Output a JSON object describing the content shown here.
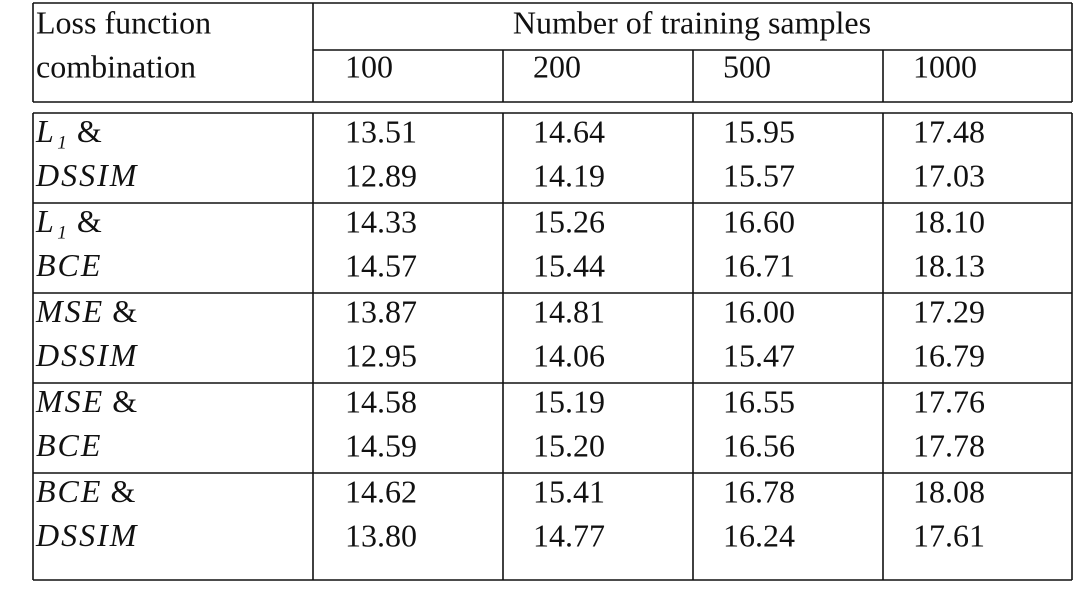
{
  "table": {
    "header": {
      "first": [
        "Loss function",
        "combination"
      ],
      "span": "Number of training samples",
      "columns": [
        "100",
        "200",
        "500",
        "1000"
      ]
    },
    "groups": [
      {
        "label": [
          {
            "math": "L₁",
            "text": "&"
          },
          {
            "math": "DSSIM"
          }
        ],
        "rows": [
          [
            "13.51",
            "14.64",
            "15.95",
            "17.48"
          ],
          [
            "12.89",
            "14.19",
            "15.57",
            "17.03"
          ]
        ]
      },
      {
        "label": [
          {
            "math": "L₁",
            "text": "&"
          },
          {
            "math": "BCE"
          }
        ],
        "rows": [
          [
            "14.33",
            "15.26",
            "16.60",
            "18.10"
          ],
          [
            "14.57",
            "15.44",
            "16.71",
            "18.13"
          ]
        ]
      },
      {
        "label": [
          {
            "math": "MSE",
            "text": "&"
          },
          {
            "math": "DSSIM"
          }
        ],
        "rows": [
          [
            "13.87",
            "14.81",
            "16.00",
            "17.29"
          ],
          [
            "12.95",
            "14.06",
            "15.47",
            "16.79"
          ]
        ]
      },
      {
        "label": [
          {
            "math": "MSE",
            "text": "&"
          },
          {
            "math": "BCE"
          }
        ],
        "rows": [
          [
            "14.58",
            "15.19",
            "16.55",
            "17.76"
          ],
          [
            "14.59",
            "15.20",
            "16.56",
            "17.78"
          ]
        ]
      },
      {
        "label": [
          {
            "math": "BCE",
            "text": "&"
          },
          {
            "math": "DSSIM"
          }
        ],
        "rows": [
          [
            "14.62",
            "15.41",
            "16.78",
            "18.08"
          ],
          [
            "13.80",
            "14.77",
            "16.24",
            "17.61"
          ]
        ]
      }
    ]
  }
}
